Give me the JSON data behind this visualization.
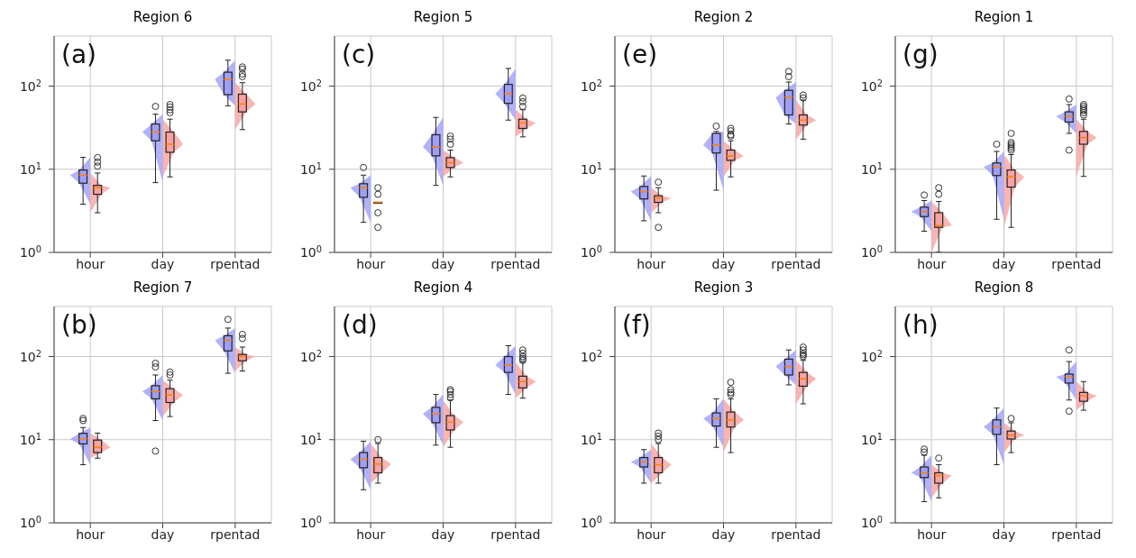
{
  "chart_data": [
    {
      "type": "box",
      "title": "Region 6",
      "annotations": [
        "(a)"
      ],
      "categories": [
        "hour",
        "day",
        "rpentad"
      ],
      "log": "y",
      "grid": true,
      "ylim": [
        1,
        400
      ],
      "yticks": [
        {
          "value": 1,
          "label": "10$^{0}$"
        },
        {
          "value": 10,
          "label": "10$^{1}$"
        },
        {
          "value": 100,
          "label": "10$^{2}$"
        }
      ],
      "series": [
        {
          "color": "#9f9ff5",
          "boxes": [
            {
              "low": 3.8,
              "q1": 6.8,
              "median": 8.5,
              "q3": 9.8,
              "high": 13.9
            },
            {
              "low": 6.9,
              "q1": 22,
              "median": 28,
              "q3": 35,
              "high": 46,
              "outliers": [
                57
              ]
            },
            {
              "low": 58,
              "q1": 79,
              "median": 121,
              "q3": 147,
              "high": 205
            }
          ]
        },
        {
          "color": "#f5a3a3",
          "boxes": [
            {
              "low": 3,
              "q1": 5,
              "median": 6,
              "q3": 6.4,
              "high": 9,
              "outliers": [
                10.9,
                12.2,
                13.8
              ]
            },
            {
              "low": 8.1,
              "q1": 16,
              "median": 20,
              "q3": 28,
              "high": 40,
              "outliers": [
                48,
                52,
                56,
                60
              ]
            },
            {
              "low": 30,
              "q1": 49,
              "median": 61,
              "q3": 80,
              "high": 110,
              "outliers": [
                130,
                140,
                160,
                170
              ]
            }
          ]
        }
      ]
    },
    {
      "type": "box",
      "title": "Region 5",
      "annotations": [
        "(c)"
      ],
      "categories": [
        "hour",
        "day",
        "rpentad"
      ],
      "log": "y",
      "grid": true,
      "ylim": [
        1,
        400
      ],
      "yticks": [
        {
          "value": 1,
          "label": "10$^{0}$"
        },
        {
          "value": 10,
          "label": "10$^{1}$"
        },
        {
          "value": 100,
          "label": "10$^{2}$"
        }
      ],
      "series": [
        {
          "color": "#9f9ff5",
          "boxes": [
            {
              "low": 2.3,
              "q1": 4.6,
              "median": 6,
              "q3": 6.7,
              "high": 8.5,
              "outliers": [
                10.5
              ]
            },
            {
              "low": 6.4,
              "q1": 14.5,
              "median": 18.5,
              "q3": 26,
              "high": 42
            },
            {
              "low": 39,
              "q1": 62,
              "median": 81,
              "q3": 105,
              "high": 163
            }
          ]
        },
        {
          "color": "#f5a3a3",
          "boxes": [
            {
              "low": 4,
              "q1": 4,
              "median": 4,
              "q3": 4,
              "high": 4,
              "outliers": [
                2,
                3,
                5,
                6
              ]
            },
            {
              "low": 8.1,
              "q1": 10.5,
              "median": 12,
              "q3": 13.8,
              "high": 17,
              "outliers": [
                20,
                23,
                25
              ]
            },
            {
              "low": 24.5,
              "q1": 31,
              "median": 36,
              "q3": 40,
              "high": 52,
              "outliers": [
                57,
                65,
                72
              ]
            }
          ]
        }
      ]
    },
    {
      "type": "box",
      "title": "Region 2",
      "annotations": [
        "(e)"
      ],
      "categories": [
        "hour",
        "day",
        "rpentad"
      ],
      "log": "y",
      "grid": true,
      "ylim": [
        1,
        400
      ],
      "yticks": [
        {
          "value": 1,
          "label": "10$^{0}$"
        },
        {
          "value": 10,
          "label": "10$^{1}$"
        },
        {
          "value": 100,
          "label": "10$^{2}$"
        }
      ],
      "series": [
        {
          "color": "#9f9ff5",
          "boxes": [
            {
              "low": 2.4,
              "q1": 4.4,
              "median": 5.4,
              "q3": 6.2,
              "high": 8.3
            },
            {
              "low": 5.6,
              "q1": 15.7,
              "median": 19.5,
              "q3": 27,
              "high": 28.5,
              "outliers": [
                33
              ]
            },
            {
              "low": 35,
              "q1": 45,
              "median": 73,
              "q3": 89,
              "high": 112,
              "outliers": [
                130,
                150
              ]
            }
          ]
        },
        {
          "color": "#f5a3a3",
          "boxes": [
            {
              "low": 3,
              "q1": 4,
              "median": 4.5,
              "q3": 4.8,
              "high": 6,
              "outliers": [
                2,
                7
              ]
            },
            {
              "low": 8.1,
              "q1": 12.8,
              "median": 14.4,
              "q3": 17,
              "high": 22,
              "outliers": [
                25,
                26,
                29,
                31
              ]
            },
            {
              "low": 23,
              "q1": 34,
              "median": 39,
              "q3": 45,
              "high": 68,
              "outliers": [
                72,
                78
              ]
            }
          ]
        }
      ]
    },
    {
      "type": "box",
      "title": "Region 1",
      "annotations": [
        "(g)"
      ],
      "categories": [
        "hour",
        "day",
        "rpentad"
      ],
      "log": "y",
      "grid": true,
      "ylim": [
        1,
        400
      ],
      "yticks": [
        {
          "value": 1,
          "label": "10$^{0}$"
        },
        {
          "value": 10,
          "label": "10$^{1}$"
        },
        {
          "value": 100,
          "label": "10$^{2}$"
        }
      ],
      "series": [
        {
          "color": "#9f9ff5",
          "boxes": [
            {
              "low": 1.8,
              "q1": 2.7,
              "median": 3.1,
              "q3": 3.5,
              "high": 4.2,
              "outliers": [
                4.9
              ]
            },
            {
              "low": 2.5,
              "q1": 8.4,
              "median": 10.7,
              "q3": 11.9,
              "high": 16.4,
              "outliers": [
                20
              ]
            },
            {
              "low": 27,
              "q1": 37,
              "median": 43,
              "q3": 49,
              "high": 60,
              "outliers": [
                17,
                70
              ]
            }
          ]
        },
        {
          "color": "#f5a3a3",
          "boxes": [
            {
              "low": 1,
              "q1": 2,
              "median": 2.1,
              "q3": 3,
              "high": 4.1,
              "outliers": [
                5,
                6
              ]
            },
            {
              "low": 2,
              "q1": 6.1,
              "median": 8.1,
              "q3": 9.8,
              "high": 15,
              "outliers": [
                17,
                18,
                19,
                20,
                21,
                27
              ]
            },
            {
              "low": 8.2,
              "q1": 20,
              "median": 24,
              "q3": 28.5,
              "high": 40,
              "outliers": [
                45,
                48,
                51,
                54,
                57,
                60
              ]
            }
          ]
        }
      ]
    },
    {
      "type": "box",
      "title": "Region 7",
      "annotations": [
        "(b)"
      ],
      "categories": [
        "hour",
        "day",
        "rpentad"
      ],
      "log": "y",
      "grid": true,
      "ylim": [
        1,
        400
      ],
      "yticks": [
        {
          "value": 1,
          "label": "10$^{0}$"
        },
        {
          "value": 10,
          "label": "10$^{1}$"
        },
        {
          "value": 100,
          "label": "10$^{2}$"
        }
      ],
      "series": [
        {
          "color": "#9f9ff5",
          "boxes": [
            {
              "low": 5,
              "q1": 8.9,
              "median": 10.2,
              "q3": 11.9,
              "high": 14,
              "outliers": [
                17,
                18
              ]
            },
            {
              "low": 17,
              "q1": 31,
              "median": 38,
              "q3": 44.6,
              "high": 60,
              "outliers": [
                7.3,
                75,
                83
              ]
            },
            {
              "low": 63,
              "q1": 117,
              "median": 157,
              "q3": 178,
              "high": 220,
              "outliers": [
                280
              ]
            }
          ]
        },
        {
          "color": "#f5a3a3",
          "boxes": [
            {
              "low": 6,
              "q1": 7,
              "median": 8.1,
              "q3": 9.9,
              "high": 12
            },
            {
              "low": 19,
              "q1": 28,
              "median": 34.5,
              "q3": 41,
              "high": 52,
              "outliers": [
                60,
                65
              ]
            },
            {
              "low": 67,
              "q1": 89,
              "median": 100,
              "q3": 106,
              "high": 130,
              "outliers": [
                165,
                185
              ]
            }
          ]
        }
      ]
    },
    {
      "type": "box",
      "title": "Region 4",
      "annotations": [
        "(d)"
      ],
      "categories": [
        "hour",
        "day",
        "rpentad"
      ],
      "log": "y",
      "grid": true,
      "ylim": [
        1,
        400
      ],
      "yticks": [
        {
          "value": 1,
          "label": "10$^{0}$"
        },
        {
          "value": 10,
          "label": "10$^{1}$"
        },
        {
          "value": 100,
          "label": "10$^{2}$"
        }
      ],
      "series": [
        {
          "color": "#9f9ff5",
          "boxes": [
            {
              "low": 2.5,
              "q1": 4.6,
              "median": 5.8,
              "q3": 7,
              "high": 9.6
            },
            {
              "low": 8.6,
              "q1": 16,
              "median": 20.5,
              "q3": 24.5,
              "high": 35
            },
            {
              "low": 35,
              "q1": 64.5,
              "median": 79,
              "q3": 100,
              "high": 135
            }
          ]
        },
        {
          "color": "#f5a3a3",
          "boxes": [
            {
              "low": 3,
              "q1": 4,
              "median": 5.1,
              "q3": 6.1,
              "high": 9,
              "outliers": [
                10
              ]
            },
            {
              "low": 8.1,
              "q1": 13.1,
              "median": 16.3,
              "q3": 19.5,
              "high": 30,
              "outliers": [
                32,
                35,
                38,
                40
              ]
            },
            {
              "low": 31.6,
              "q1": 42,
              "median": 50,
              "q3": 58,
              "high": 85,
              "outliers": [
                90,
                95,
                100,
                110,
                120
              ]
            }
          ]
        }
      ]
    },
    {
      "type": "box",
      "title": "Region 3",
      "annotations": [
        "(f)"
      ],
      "categories": [
        "hour",
        "day",
        "rpentad"
      ],
      "log": "y",
      "grid": true,
      "ylim": [
        1,
        400
      ],
      "yticks": [
        {
          "value": 1,
          "label": "10$^{0}$"
        },
        {
          "value": 10,
          "label": "10$^{1}$"
        },
        {
          "value": 100,
          "label": "10$^{2}$"
        }
      ],
      "series": [
        {
          "color": "#9f9ff5",
          "boxes": [
            {
              "low": 3,
              "q1": 4.7,
              "median": 5.4,
              "q3": 6.1,
              "high": 7.6
            },
            {
              "low": 8.1,
              "q1": 14.6,
              "median": 18,
              "q3": 21,
              "high": 31
            },
            {
              "low": 45.6,
              "q1": 60,
              "median": 76,
              "q3": 93,
              "high": 120
            }
          ]
        },
        {
          "color": "#f5a3a3",
          "boxes": [
            {
              "low": 3,
              "q1": 4,
              "median": 5,
              "q3": 6.1,
              "high": 9,
              "outliers": [
                10,
                11,
                12
              ]
            },
            {
              "low": 7,
              "q1": 14.2,
              "median": 17.3,
              "q3": 21.5,
              "high": 31,
              "outliers": [
                35,
                37,
                40,
                49
              ]
            },
            {
              "low": 27,
              "q1": 44,
              "median": 54,
              "q3": 64.5,
              "high": 90,
              "outliers": [
                100,
                105,
                110,
                120,
                130
              ]
            }
          ]
        }
      ]
    },
    {
      "type": "box",
      "title": "Region 8",
      "annotations": [
        "(h)"
      ],
      "categories": [
        "hour",
        "day",
        "rpentad"
      ],
      "log": "y",
      "grid": true,
      "ylim": [
        1,
        400
      ],
      "yticks": [
        {
          "value": 1,
          "label": "10$^{0}$"
        },
        {
          "value": 10,
          "label": "10$^{1}$"
        },
        {
          "value": 100,
          "label": "10$^{2}$"
        }
      ],
      "series": [
        {
          "color": "#9f9ff5",
          "boxes": [
            {
              "low": 1.8,
              "q1": 3.5,
              "median": 4,
              "q3": 4.7,
              "high": 6.5,
              "outliers": [
                7.1,
                7.7
              ]
            },
            {
              "low": 5,
              "q1": 11.6,
              "median": 14.3,
              "q3": 17.3,
              "high": 24
            },
            {
              "low": 30,
              "q1": 48,
              "median": 57,
              "q3": 61.5,
              "high": 87,
              "outliers": [
                22,
                120
              ]
            }
          ]
        },
        {
          "color": "#f5a3a3",
          "boxes": [
            {
              "low": 2,
              "q1": 3,
              "median": 3.7,
              "q3": 4,
              "high": 5,
              "outliers": [
                6
              ]
            },
            {
              "low": 7,
              "q1": 10.2,
              "median": 11.3,
              "q3": 12.7,
              "high": 16,
              "outliers": [
                18
              ]
            },
            {
              "low": 22.6,
              "q1": 29,
              "median": 33.7,
              "q3": 37,
              "high": 50
            }
          ]
        }
      ]
    }
  ]
}
